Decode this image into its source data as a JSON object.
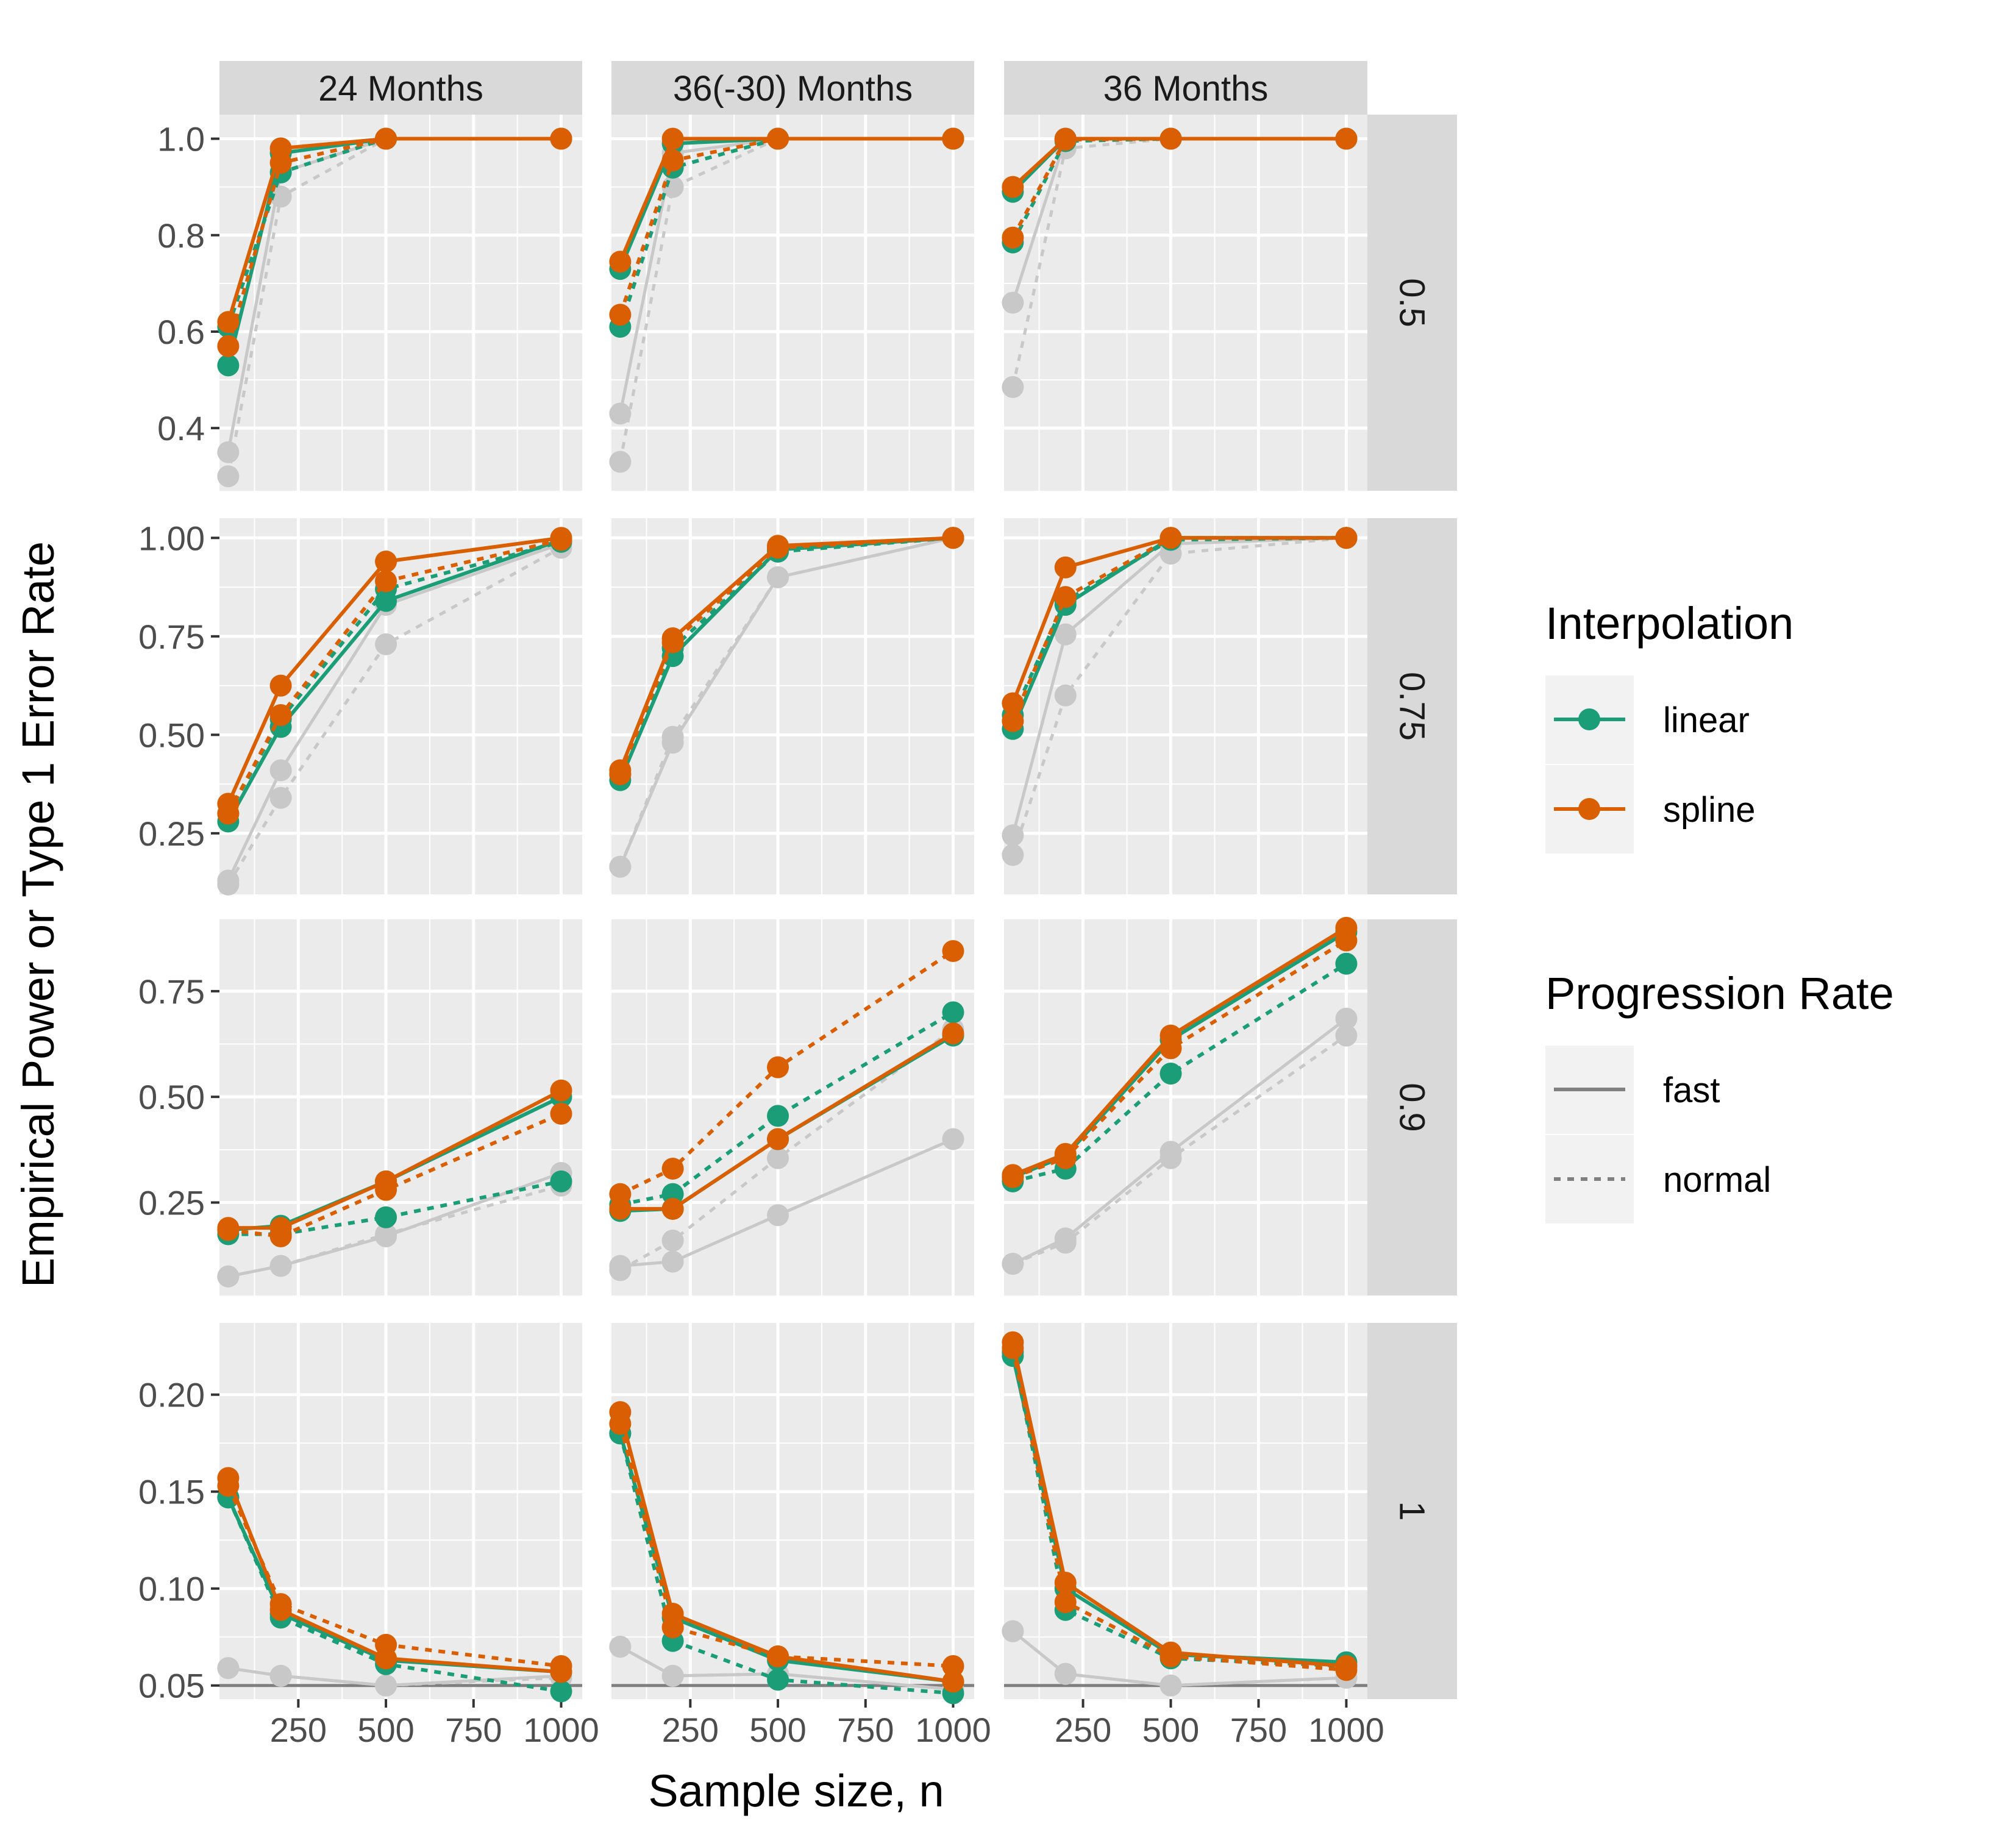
{
  "chart_data": {
    "type": "line",
    "xlabel": "Sample size, n",
    "ylabel": "Empirical Power or Type 1 Error Rate",
    "x": [
      50,
      200,
      500,
      1000
    ],
    "xticks": [
      250,
      500,
      750,
      1000
    ],
    "xlim": [
      25,
      1060
    ],
    "grid": true,
    "col_facets": [
      "24 Months",
      "36(-30) Months",
      "36 Months"
    ],
    "row_facets": [
      "0.5",
      "0.75",
      "0.9",
      "1"
    ],
    "row_scales": [
      {
        "ylim": [
          0.27,
          1.05
        ],
        "ticks": [
          0.4,
          0.6,
          0.8,
          1.0
        ],
        "tick_labels": [
          "0.4",
          "0.6",
          "0.8",
          "1.0"
        ],
        "reference": null
      },
      {
        "ylim": [
          0.095,
          1.05
        ],
        "ticks": [
          0.25,
          0.5,
          0.75,
          1.0
        ],
        "tick_labels": [
          "0.25",
          "0.50",
          "0.75",
          "1.00"
        ],
        "reference": null
      },
      {
        "ylim": [
          0.03,
          0.92
        ],
        "ticks": [
          0.25,
          0.5,
          0.75
        ],
        "tick_labels": [
          "0.25",
          "0.50",
          "0.75"
        ],
        "reference": null
      },
      {
        "ylim": [
          0.043,
          0.237
        ],
        "ticks": [
          0.05,
          0.1,
          0.15,
          0.2
        ],
        "tick_labels": [
          "0.05",
          "0.10",
          "0.15",
          "0.20"
        ],
        "reference": 0.05
      }
    ],
    "colors": {
      "linear": "#1b9e77",
      "spline": "#d95f02",
      "grey": "#c8c8c8",
      "legend_line": "#808080",
      "reference_line": "#7f7f7f",
      "panel_bg": "#ebebeb",
      "strip_bg": "#d9d9d9"
    },
    "panels": [
      {
        "row": 0,
        "col": 0,
        "series": [
          {
            "interp": "linear",
            "prog": "fast",
            "values": [
              0.53,
              0.97,
              1.0,
              1.0
            ]
          },
          {
            "interp": "linear",
            "prog": "normal",
            "values": [
              0.61,
              0.93,
              1.0,
              1.0
            ]
          },
          {
            "interp": "spline",
            "prog": "fast",
            "values": [
              0.62,
              0.98,
              1.0,
              1.0
            ]
          },
          {
            "interp": "spline",
            "prog": "normal",
            "values": [
              0.57,
              0.95,
              1.0,
              1.0
            ]
          },
          {
            "interp": "grey",
            "prog": "fast",
            "values": [
              0.35,
              0.93,
              1.0,
              1.0
            ]
          },
          {
            "interp": "grey",
            "prog": "normal",
            "values": [
              0.3,
              0.88,
              1.0,
              1.0
            ]
          }
        ]
      },
      {
        "row": 0,
        "col": 1,
        "series": [
          {
            "interp": "linear",
            "prog": "fast",
            "values": [
              0.73,
              0.99,
              1.0,
              1.0
            ]
          },
          {
            "interp": "linear",
            "prog": "normal",
            "values": [
              0.61,
              0.94,
              1.0,
              1.0
            ]
          },
          {
            "interp": "spline",
            "prog": "fast",
            "values": [
              0.745,
              1.0,
              1.0,
              1.0
            ]
          },
          {
            "interp": "spline",
            "prog": "normal",
            "values": [
              0.635,
              0.955,
              1.0,
              1.0
            ]
          },
          {
            "interp": "grey",
            "prog": "fast",
            "values": [
              0.43,
              0.97,
              1.0,
              1.0
            ]
          },
          {
            "interp": "grey",
            "prog": "normal",
            "values": [
              0.33,
              0.9,
              1.0,
              1.0
            ]
          }
        ]
      },
      {
        "row": 0,
        "col": 2,
        "series": [
          {
            "interp": "linear",
            "prog": "fast",
            "values": [
              0.89,
              1.0,
              1.0,
              1.0
            ]
          },
          {
            "interp": "linear",
            "prog": "normal",
            "values": [
              0.785,
              0.995,
              1.0,
              1.0
            ]
          },
          {
            "interp": "spline",
            "prog": "fast",
            "values": [
              0.9,
              1.0,
              1.0,
              1.0
            ]
          },
          {
            "interp": "spline",
            "prog": "normal",
            "values": [
              0.795,
              0.998,
              1.0,
              1.0
            ]
          },
          {
            "interp": "grey",
            "prog": "fast",
            "values": [
              0.66,
              1.0,
              1.0,
              1.0
            ]
          },
          {
            "interp": "grey",
            "prog": "normal",
            "values": [
              0.485,
              0.98,
              1.0,
              1.0
            ]
          }
        ]
      },
      {
        "row": 1,
        "col": 0,
        "series": [
          {
            "interp": "linear",
            "prog": "fast",
            "values": [
              0.28,
              0.52,
              0.84,
              0.995
            ]
          },
          {
            "interp": "linear",
            "prog": "normal",
            "values": [
              0.3,
              0.54,
              0.87,
              0.99
            ]
          },
          {
            "interp": "spline",
            "prog": "fast",
            "values": [
              0.325,
              0.625,
              0.94,
              1.0
            ]
          },
          {
            "interp": "spline",
            "prog": "normal",
            "values": [
              0.3,
              0.55,
              0.89,
              0.995
            ]
          },
          {
            "interp": "grey",
            "prog": "fast",
            "values": [
              0.13,
              0.41,
              0.83,
              0.985
            ]
          },
          {
            "interp": "grey",
            "prog": "normal",
            "values": [
              0.12,
              0.34,
              0.73,
              0.975
            ]
          }
        ]
      },
      {
        "row": 1,
        "col": 1,
        "series": [
          {
            "interp": "linear",
            "prog": "fast",
            "values": [
              0.385,
              0.7,
              0.97,
              1.0
            ]
          },
          {
            "interp": "linear",
            "prog": "normal",
            "values": [
              0.4,
              0.72,
              0.965,
              1.0
            ]
          },
          {
            "interp": "spline",
            "prog": "fast",
            "values": [
              0.41,
              0.745,
              0.98,
              1.0
            ]
          },
          {
            "interp": "spline",
            "prog": "normal",
            "values": [
              0.4,
              0.735,
              0.975,
              1.0
            ]
          },
          {
            "interp": "grey",
            "prog": "fast",
            "values": [
              0.165,
              0.48,
              0.9,
              1.0
            ]
          },
          {
            "interp": "grey",
            "prog": "normal",
            "values": [
              0.165,
              0.495,
              0.9,
              1.0
            ]
          }
        ]
      },
      {
        "row": 1,
        "col": 2,
        "series": [
          {
            "interp": "linear",
            "prog": "fast",
            "values": [
              0.515,
              0.83,
              1.0,
              1.0
            ]
          },
          {
            "interp": "linear",
            "prog": "normal",
            "values": [
              0.55,
              0.84,
              0.995,
              1.0
            ]
          },
          {
            "interp": "spline",
            "prog": "fast",
            "values": [
              0.58,
              0.925,
              1.0,
              1.0
            ]
          },
          {
            "interp": "spline",
            "prog": "normal",
            "values": [
              0.535,
              0.85,
              1.0,
              1.0
            ]
          },
          {
            "interp": "grey",
            "prog": "fast",
            "values": [
              0.245,
              0.755,
              0.985,
              1.0
            ]
          },
          {
            "interp": "grey",
            "prog": "normal",
            "values": [
              0.195,
              0.6,
              0.96,
              1.0
            ]
          }
        ]
      },
      {
        "row": 2,
        "col": 0,
        "series": [
          {
            "interp": "linear",
            "prog": "fast",
            "values": [
              0.185,
              0.195,
              0.3,
              0.5
            ]
          },
          {
            "interp": "linear",
            "prog": "normal",
            "values": [
              0.175,
              0.175,
              0.215,
              0.3
            ]
          },
          {
            "interp": "spline",
            "prog": "fast",
            "values": [
              0.19,
              0.19,
              0.3,
              0.515
            ]
          },
          {
            "interp": "spline",
            "prog": "normal",
            "values": [
              0.185,
              0.17,
              0.28,
              0.46
            ]
          },
          {
            "interp": "grey",
            "prog": "fast",
            "values": [
              0.075,
              0.1,
              0.17,
              0.32
            ]
          },
          {
            "interp": "grey",
            "prog": "normal",
            "values": [
              0.075,
              0.1,
              0.175,
              0.29
            ]
          }
        ]
      },
      {
        "row": 2,
        "col": 1,
        "series": [
          {
            "interp": "linear",
            "prog": "fast",
            "values": [
              0.23,
              0.235,
              0.4,
              0.645
            ]
          },
          {
            "interp": "linear",
            "prog": "normal",
            "values": [
              0.245,
              0.27,
              0.455,
              0.7
            ]
          },
          {
            "interp": "spline",
            "prog": "fast",
            "values": [
              0.235,
              0.235,
              0.4,
              0.65
            ]
          },
          {
            "interp": "spline",
            "prog": "normal",
            "values": [
              0.27,
              0.33,
              0.57,
              0.845
            ]
          },
          {
            "interp": "grey",
            "prog": "fast",
            "values": [
              0.1,
              0.11,
              0.22,
              0.4
            ]
          },
          {
            "interp": "grey",
            "prog": "normal",
            "values": [
              0.09,
              0.16,
              0.355,
              0.66
            ]
          }
        ]
      },
      {
        "row": 2,
        "col": 2,
        "series": [
          {
            "interp": "linear",
            "prog": "fast",
            "values": [
              0.31,
              0.36,
              0.635,
              0.89
            ]
          },
          {
            "interp": "linear",
            "prog": "normal",
            "values": [
              0.3,
              0.33,
              0.555,
              0.815
            ]
          },
          {
            "interp": "spline",
            "prog": "fast",
            "values": [
              0.315,
              0.365,
              0.645,
              0.9
            ]
          },
          {
            "interp": "spline",
            "prog": "normal",
            "values": [
              0.31,
              0.355,
              0.615,
              0.87
            ]
          },
          {
            "interp": "grey",
            "prog": "fast",
            "values": [
              0.105,
              0.165,
              0.37,
              0.685
            ]
          },
          {
            "interp": "grey",
            "prog": "normal",
            "values": [
              0.105,
              0.155,
              0.355,
              0.645
            ]
          }
        ]
      },
      {
        "row": 3,
        "col": 0,
        "series": [
          {
            "interp": "linear",
            "prog": "fast",
            "values": [
              0.147,
              0.087,
              0.063,
              0.057
            ]
          },
          {
            "interp": "linear",
            "prog": "normal",
            "values": [
              0.147,
              0.085,
              0.061,
              0.047
            ]
          },
          {
            "interp": "spline",
            "prog": "fast",
            "values": [
              0.157,
              0.089,
              0.064,
              0.057
            ]
          },
          {
            "interp": "spline",
            "prog": "normal",
            "values": [
              0.153,
              0.092,
              0.071,
              0.06
            ]
          },
          {
            "interp": "grey",
            "prog": "fast",
            "values": [
              0.059,
              0.055,
              0.05,
              0.055
            ]
          },
          {
            "interp": "grey",
            "prog": "normal",
            "values": [
              0.059,
              0.055,
              0.05,
              0.054
            ]
          }
        ]
      },
      {
        "row": 3,
        "col": 1,
        "series": [
          {
            "interp": "linear",
            "prog": "fast",
            "values": [
              0.18,
              0.085,
              0.063,
              0.052
            ]
          },
          {
            "interp": "linear",
            "prog": "normal",
            "values": [
              0.18,
              0.073,
              0.053,
              0.046
            ]
          },
          {
            "interp": "spline",
            "prog": "fast",
            "values": [
              0.191,
              0.087,
              0.065,
              0.052
            ]
          },
          {
            "interp": "spline",
            "prog": "normal",
            "values": [
              0.185,
              0.08,
              0.065,
              0.06
            ]
          },
          {
            "interp": "grey",
            "prog": "fast",
            "values": [
              0.07,
              0.055,
              0.056,
              0.048
            ]
          },
          {
            "interp": "grey",
            "prog": "normal",
            "values": [
              0.07,
              0.055,
              0.056,
              0.048
            ]
          }
        ]
      },
      {
        "row": 3,
        "col": 2,
        "series": [
          {
            "interp": "linear",
            "prog": "fast",
            "values": [
              0.22,
              0.1,
              0.066,
              0.062
            ]
          },
          {
            "interp": "linear",
            "prog": "normal",
            "values": [
              0.222,
              0.089,
              0.064,
              0.06
            ]
          },
          {
            "interp": "spline",
            "prog": "fast",
            "values": [
              0.227,
              0.103,
              0.067,
              0.06
            ]
          },
          {
            "interp": "spline",
            "prog": "normal",
            "values": [
              0.224,
              0.093,
              0.065,
              0.058
            ]
          },
          {
            "interp": "grey",
            "prog": "fast",
            "values": [
              0.078,
              0.056,
              0.05,
              0.054
            ]
          },
          {
            "interp": "grey",
            "prog": "normal",
            "values": [
              0.078,
              0.056,
              0.05,
              0.054
            ]
          }
        ]
      }
    ],
    "legends": [
      {
        "title": "Interpolation",
        "keys": [
          {
            "label": "linear",
            "color": "#1b9e77",
            "dash": false,
            "point": true
          },
          {
            "label": "spline",
            "color": "#d95f02",
            "dash": false,
            "point": true
          }
        ]
      },
      {
        "title": "Progression Rate",
        "keys": [
          {
            "label": "fast",
            "color": "#808080",
            "dash": false,
            "point": false
          },
          {
            "label": "normal",
            "color": "#808080",
            "dash": true,
            "point": false
          }
        ]
      }
    ],
    "legend_position": "right"
  }
}
